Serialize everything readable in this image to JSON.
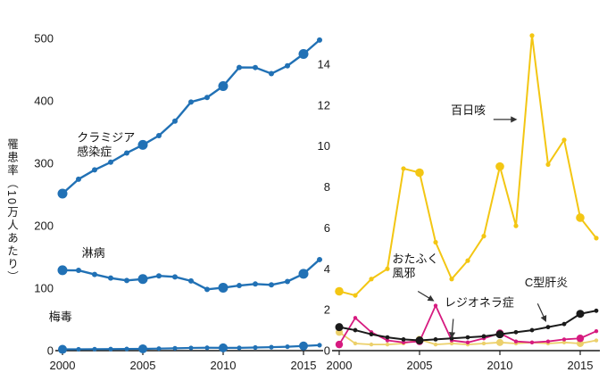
{
  "figure": {
    "ylabel": "罹患率（10万人あたり）"
  },
  "chart_data": [
    {
      "type": "line",
      "title": "",
      "xlabel": "",
      "ylabel": "罹患率（10万人あたり）",
      "x": [
        2000,
        2001,
        2002,
        2003,
        2004,
        2005,
        2006,
        2007,
        2008,
        2009,
        2010,
        2011,
        2012,
        2013,
        2014,
        2015,
        2016
      ],
      "xticks": [
        2000,
        2005,
        2010,
        2015
      ],
      "ylim": [
        0,
        500
      ],
      "yticks": [
        0,
        100,
        200,
        300,
        400,
        500
      ],
      "grid": false,
      "legend": "none",
      "accent_color": "#2171b5",
      "series": [
        {
          "id": "chlamydia",
          "name": "クラミジア感染症",
          "color": "#2171b5",
          "width": 2.4,
          "big_r": 5.5,
          "small_r": 3,
          "values": [
            251.4,
            274.5,
            289.4,
            301.7,
            316.5,
            329.4,
            344.3,
            367.5,
            398.1,
            405.3,
            423.6,
            453.4,
            453.3,
            443.5,
            456.1,
            475.0,
            497.3
          ]
        },
        {
          "id": "gonorrhea",
          "name": "淋病",
          "color": "#2171b5",
          "width": 2.4,
          "big_r": 5.5,
          "small_r": 3,
          "values": [
            128.7,
            128.5,
            122.0,
            116.2,
            112.4,
            114.6,
            119.7,
            118.1,
            111.6,
            98.1,
            100.8,
            104.2,
            106.7,
            105.3,
            110.7,
            123.0,
            145.8
          ]
        },
        {
          "id": "syphilis",
          "name": "梅毒",
          "color": "#2171b5",
          "width": 2.2,
          "big_r": 5,
          "small_r": 2.6,
          "values": [
            2.1,
            2.2,
            2.4,
            2.5,
            2.7,
            2.9,
            3.3,
            3.8,
            4.4,
            4.6,
            4.5,
            4.5,
            5.0,
            5.5,
            6.3,
            7.5,
            8.7
          ]
        }
      ],
      "annotations": [
        {
          "id": "chlamydia-label",
          "lines": [
            "クラミジア",
            "感染症"
          ],
          "at": [
            2000.9,
            335
          ],
          "anchor": "start"
        },
        {
          "id": "gonorrhea-label",
          "lines": [
            "淋病"
          ],
          "at": [
            2001.2,
            150
          ],
          "anchor": "start"
        },
        {
          "id": "syphilis-label",
          "lines": [
            "梅毒"
          ],
          "at": [
            1999.15,
            48
          ],
          "anchor": "start"
        }
      ]
    },
    {
      "type": "line",
      "title": "",
      "xlabel": "",
      "ylabel": "罹患率（10万人あたり）",
      "x": [
        2000,
        2001,
        2002,
        2003,
        2004,
        2005,
        2006,
        2007,
        2008,
        2009,
        2010,
        2011,
        2012,
        2013,
        2014,
        2015,
        2016
      ],
      "xticks": [
        2000,
        2005,
        2010,
        2015
      ],
      "ylim": [
        0,
        15.5
      ],
      "yticks": [
        0,
        2,
        4,
        6,
        8,
        10,
        12,
        14
      ],
      "grid": false,
      "legend": "none",
      "series": [
        {
          "id": "legionella",
          "name": "レジオネラ症",
          "color": "#ecd06b",
          "width": 1.8,
          "big_r": 4,
          "small_r": 2.2,
          "values": [
            0.9,
            0.35,
            0.3,
            0.3,
            0.35,
            0.55,
            0.3,
            0.35,
            0.3,
            0.35,
            0.4,
            0.35,
            0.4,
            0.35,
            0.4,
            0.35,
            0.5
          ]
        },
        {
          "id": "mumps",
          "name": "おたふく風邪",
          "color": "#d61a7f",
          "width": 1.8,
          "big_r": 4.2,
          "small_r": 2.2,
          "values": [
            0.3,
            1.6,
            0.9,
            0.5,
            0.4,
            0.45,
            2.2,
            0.5,
            0.4,
            0.6,
            0.85,
            0.45,
            0.4,
            0.45,
            0.55,
            0.6,
            0.95
          ]
        },
        {
          "id": "hepatitis-c",
          "name": "C型肝炎",
          "color": "#1a1a1a",
          "width": 2,
          "big_r": 4.5,
          "small_r": 2.4,
          "values": [
            1.15,
            1.0,
            0.8,
            0.65,
            0.55,
            0.5,
            0.55,
            0.6,
            0.65,
            0.7,
            0.8,
            0.9,
            1.0,
            1.15,
            1.3,
            1.8,
            1.95
          ]
        },
        {
          "id": "pertussis",
          "name": "百日咳",
          "color": "#f3c613",
          "width": 2,
          "big_r": 4.8,
          "small_r": 2.6,
          "values": [
            2.9,
            2.7,
            3.5,
            4.0,
            8.9,
            8.7,
            5.3,
            3.5,
            4.4,
            5.6,
            9.0,
            6.1,
            15.4,
            9.1,
            10.3,
            6.5,
            5.5
          ]
        }
      ],
      "annotations": [
        {
          "id": "pertussis-label",
          "lines": [
            "百日咳"
          ],
          "at": [
            2006.95,
            11.55
          ],
          "anchor": "start",
          "arrow": {
            "from": [
              2009.6,
              11.3
            ],
            "to": [
              2011.0,
              11.3
            ]
          }
        },
        {
          "id": "mumps-label",
          "lines": [
            "おたふく",
            "風邪"
          ],
          "at": [
            2003.3,
            4.3
          ],
          "anchor": "start",
          "arrow": {
            "from": [
              2004.9,
              2.9
            ],
            "to": [
              2005.85,
              2.45
            ]
          }
        },
        {
          "id": "legionella-label",
          "lines": [
            "レジオネラ症"
          ],
          "at": [
            2006.55,
            2.15
          ],
          "anchor": "start",
          "arrow": {
            "from": [
              2007.1,
              1.55
            ],
            "to": [
              2007.0,
              0.65
            ]
          }
        },
        {
          "id": "hepatitis-c-label",
          "lines": [
            "C型肝炎"
          ],
          "at": [
            2011.55,
            3.15
          ],
          "anchor": "start",
          "arrow": {
            "from": [
              2012.35,
              2.3
            ],
            "to": [
              2012.85,
              1.45
            ]
          }
        }
      ]
    }
  ]
}
